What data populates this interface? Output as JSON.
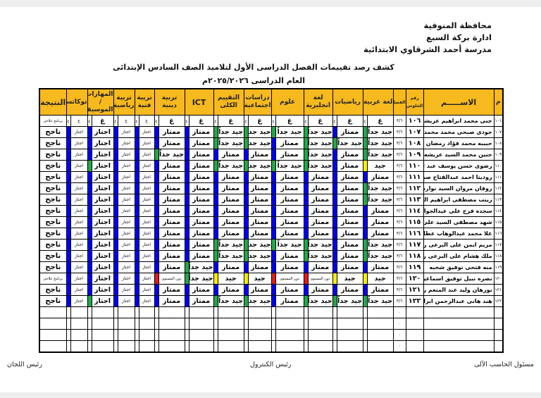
{
  "header": {
    "governorate": "محافظة المنوفية",
    "administration": "ادارة بركة السبع",
    "school": "مدرسة أحمد الشرقاوي الابتدائية",
    "title": "كشف رصد تقييمات الفصل الدراسى الأول لتلاميذ الصف السادس الإبتدائى",
    "year": "العام الدراسى ٢٠٢٥/٢٠٢٦م"
  },
  "columns": {
    "m": "م",
    "name": "الاســـــم",
    "seat": "رقم الجلوس",
    "fasl": "الفصل",
    "subjects": [
      "لغة عربية",
      "رياضيات",
      "لغة انجليزية",
      "علوم",
      "دراسات اجتماعية",
      "التقييم الكلى",
      "ICT",
      "تربية دينية",
      "تربية فنية",
      "تربية رياضية",
      "المهارات / الموسيقى",
      "توكاتسو"
    ],
    "result": "النتيجة"
  },
  "grade_colors": {
    "ممتاز": "#0000ff",
    "اجتاز": "#0000ff",
    "جيد جداً": "#22a84a",
    "جيد": "#ffee00",
    "دون المستوى": "#e31b1b",
    "غ": ""
  },
  "students": [
    {
      "m": "١٠١",
      "name": "جنى محمد ابراهيم عريشه",
      "seat": "١٠٦",
      "fasl": "٣/٦",
      "grades": [
        "غ",
        "غ",
        "غ",
        "غ",
        "غ",
        "غ",
        "غ",
        "غ",
        "غ",
        "غ",
        "غ",
        "غ"
      ],
      "result": "برنامج علاجى"
    },
    {
      "m": "١٠٧",
      "name": "جودى صبحى محمد محمد شطيه",
      "seat": "١٠٧",
      "fasl": "٣/٦",
      "grades": [
        "جيد جداً",
        "ممتاز",
        "جيد جداً",
        "جيد جداً",
        "جيد جداً",
        "جيد جداً",
        "ممتاز",
        "ممتاز",
        "اجتاز",
        "اجتاز",
        "اجتاز",
        "اجتاز"
      ],
      "result": "ناجح"
    },
    {
      "m": "١٠٨",
      "name": "حبيبه محمد فؤاد رمضان",
      "seat": "١٠٨",
      "fasl": "٣/٦",
      "grades": [
        "جيد جداً",
        "جيد جداً",
        "جيد جداً",
        "ممتاز",
        "جيد جداً",
        "جيد جداً",
        "ممتاز",
        "ممتاز",
        "اجتاز",
        "اجتاز",
        "اجتاز",
        "اجتاز"
      ],
      "result": "ناجح"
    },
    {
      "m": "١٠٩",
      "name": "حنين محمد السيد عريشه",
      "seat": "١٠٩",
      "fasl": "٣/٦",
      "grades": [
        "جيد جداً",
        "ممتاز",
        "جيد جداً",
        "ممتاز",
        "ممتاز",
        "ممتاز",
        "ممتاز",
        "جيد جداً",
        "اجتاز",
        "اجتاز",
        "اجتاز",
        "اجتاز"
      ],
      "result": "ناجح"
    },
    {
      "m": "١١٠",
      "name": "رضوى حسن يوسف عبد الجيد",
      "seat": "١١٠",
      "fasl": "٣/٦",
      "grades": [
        "جيد",
        "ممتاز",
        "جيد جداً",
        "جيد جداً",
        "جيد جداً",
        "جيد جداً",
        "ممتاز",
        "ممتاز",
        "اجتاز",
        "اجتاز",
        "اجتاز",
        "اجتاز"
      ],
      "highlight": {
        "10": "#22a84a"
      },
      "result": "ناجح"
    },
    {
      "m": "١١١",
      "name": "روديتا احمد عبدالفتاح صبري زيدان",
      "seat": "١١١",
      "fasl": "٣/٦",
      "grades": [
        "ممتاز",
        "ممتاز",
        "ممتاز",
        "ممتاز",
        "ممتاز",
        "ممتاز",
        "ممتاز",
        "ممتاز",
        "اجتاز",
        "اجتاز",
        "اجتاز",
        "اجتاز"
      ],
      "result": "ناجح"
    },
    {
      "m": "١١٢",
      "name": "روفان مروان السيد نواره",
      "seat": "١١٢",
      "fasl": "٣/٦",
      "grades": [
        "جيد جداً",
        "ممتاز",
        "ممتاز",
        "ممتاز",
        "ممتاز",
        "ممتاز",
        "ممتاز",
        "ممتاز",
        "اجتاز",
        "اجتاز",
        "اجتاز",
        "اجتاز"
      ],
      "result": "ناجح"
    },
    {
      "m": "١١٣",
      "name": "زينب مصطفى ابراهيم الدسوقي البلتاجي",
      "seat": "١١٣",
      "fasl": "٣/٦",
      "grades": [
        "جيد جداً",
        "ممتاز",
        "ممتاز",
        "ممتاز",
        "ممتاز",
        "ممتاز",
        "ممتاز",
        "ممتاز",
        "اجتاز",
        "اجتاز",
        "اجتاز",
        "اجتاز"
      ],
      "result": "ناجح"
    },
    {
      "m": "١١٤",
      "name": "سجده فرج على عبدالجواد على",
      "seat": "١١٤",
      "fasl": "٣/٦",
      "grades": [
        "ممتاز",
        "ممتاز",
        "ممتاز",
        "ممتاز",
        "ممتاز",
        "ممتاز",
        "ممتاز",
        "ممتاز",
        "اجتاز",
        "اجتاز",
        "اجتاز",
        "اجتاز"
      ],
      "result": "ناجح"
    },
    {
      "m": "١١٥",
      "name": "شهد مصطفى السيد على خليل",
      "seat": "١١٥",
      "fasl": "٣/٦",
      "grades": [
        "ممتاز",
        "ممتاز",
        "ممتاز",
        "ممتاز",
        "ممتاز",
        "ممتاز",
        "ممتاز",
        "ممتاز",
        "اجتاز",
        "اجتاز",
        "اجتاز",
        "اجتاز"
      ],
      "result": "ناجح"
    },
    {
      "m": "١١٦",
      "name": "علا محمد عبدالوهاب عطاالله",
      "seat": "١١٦",
      "fasl": "٣/٦",
      "grades": [
        "ممتاز",
        "ممتاز",
        "ممتاز",
        "ممتاز",
        "ممتاز",
        "ممتاز",
        "ممتاز",
        "ممتاز",
        "اجتاز",
        "اجتاز",
        "اجتاز",
        "اجتاز"
      ],
      "result": "ناجح"
    },
    {
      "m": "١١٧",
      "name": "مريم ايمن على البرعى رمضان",
      "seat": "١١٧",
      "fasl": "٣/٦",
      "grades": [
        "جيد جداً",
        "ممتاز",
        "جيد جداً",
        "جيد جداً",
        "جيد جداً",
        "جيد جداً",
        "ممتاز",
        "ممتاز",
        "اجتاز",
        "اجتاز",
        "اجتاز",
        "اجتاز"
      ],
      "result": "ناجح"
    },
    {
      "m": "١١٨",
      "name": "ملك هشام على البرعى رمضان",
      "seat": "١١٨",
      "fasl": "٣/٦",
      "grades": [
        "جيد جداً",
        "ممتاز",
        "جيد جداً",
        "ممتاز",
        "جيد جداً",
        "جيد جداً",
        "ممتاز",
        "ممتاز",
        "اجتاز",
        "اجتاز",
        "اجتاز",
        "اجتاز"
      ],
      "result": "ناجح"
    },
    {
      "m": "١١٩",
      "name": "منه فتحى توفيق شخبه",
      "seat": "١١٩",
      "fasl": "٣/٦",
      "grades": [
        "ممتاز",
        "ممتاز",
        "ممتاز",
        "ممتاز",
        "ممتاز",
        "ممتاز",
        "جيد جداً",
        "ممتاز",
        "اجتاز",
        "اجتاز",
        "اجتاز",
        "اجتاز"
      ],
      "result": "ناجح"
    },
    {
      "m": "١٢٠",
      "name": "نصره نبيل توفيق اسماعيل البرنخيلي",
      "seat": "١٢٠",
      "fasl": "٣/٦",
      "grades": [
        "جيد",
        "جيد",
        "دون المستوى",
        "دون المستوى",
        "جيد",
        "جيد",
        "جيد جداً",
        "دون المستوى",
        "اجتاز",
        "اجتاز",
        "اجتاز",
        "اجتاز"
      ],
      "result": "برنامج علاجى"
    },
    {
      "m": "١٢١",
      "name": "نورهان وليد عبد المنعم رضوان",
      "seat": "١٢١",
      "fasl": "٣/٦",
      "grades": [
        "ممتاز",
        "ممتاز",
        "ممتاز",
        "ممتاز",
        "ممتاز",
        "ممتاز",
        "ممتاز",
        "ممتاز",
        "اجتاز",
        "اجتاز",
        "اجتاز",
        "اجتاز"
      ],
      "result": "ناجح"
    },
    {
      "m": "١٢٢",
      "name": "هند هانى عبدالرحمن ابراهيم سمرى",
      "seat": "١٢٢",
      "fasl": "٣/٦",
      "grades": [
        "جيد جداً",
        "جيد جداً",
        "جيد جداً",
        "ممتاز",
        "جيد جداً",
        "جيد جداً",
        "ممتاز",
        "ممتاز",
        "اجتاز",
        "اجتاز",
        "اجتاز",
        "اجتاز"
      ],
      "highlight": {
        "10": "#22a84a"
      },
      "result": "ناجح"
    }
  ],
  "empty_rows": [
    {
      "fasl": "٠"
    },
    {
      "fasl": "٠"
    },
    {
      "fasl": "٠"
    },
    {
      "fasl": "٠"
    }
  ],
  "footer": {
    "computer_officer": "مسئول الحاسب الآلى",
    "control_head": "رئيس الكنترول",
    "committees_head": "رئيس اللجان"
  }
}
